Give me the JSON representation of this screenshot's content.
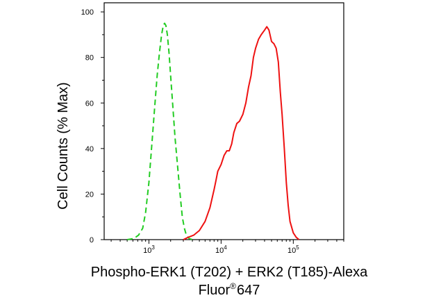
{
  "chart_data": {
    "type": "line",
    "ylabel": "Cell Counts (% Max)",
    "xlabel_line1": "Phospho-ERK1 (T202) + ERK2 (T185)-Alexa",
    "xlabel_line2_main": "Fluor",
    "xlabel_line2_sup": "®",
    "xlabel_line2_end": "647",
    "x_scale": "log",
    "xlim": [
      240,
      500000
    ],
    "ylim": [
      0,
      104
    ],
    "y_ticks": [
      0,
      20,
      40,
      60,
      80,
      100
    ],
    "y_tick_labels": [
      "0",
      "20",
      "40",
      "60",
      "80",
      "100"
    ],
    "x_major_ticks": [
      1000,
      10000,
      100000
    ],
    "x_major_tick_bases": [
      "10",
      "10",
      "10"
    ],
    "x_major_tick_exps": [
      "3",
      "4",
      "5"
    ],
    "grid": false,
    "colors": {
      "series_control": "#22cc22",
      "series_sample": "#ee1111",
      "axis": "#000000"
    },
    "series": [
      {
        "style": "dashed",
        "color": "#22cc22",
        "x": [
          500,
          620,
          720,
          820,
          900,
          1000,
          1100,
          1200,
          1300,
          1400,
          1500,
          1580,
          1650,
          1720,
          1800,
          1900,
          2000,
          2150,
          2300,
          2500,
          2700,
          2900,
          3100,
          3300,
          3600,
          4000
        ],
        "y": [
          0,
          0.5,
          2,
          5,
          12,
          25,
          42,
          58,
          72,
          82,
          90,
          94,
          95,
          94,
          90,
          82,
          72,
          58,
          45,
          32,
          20,
          10,
          5,
          2,
          0.5,
          0
        ]
      },
      {
        "style": "solid",
        "color": "#ee1111",
        "x": [
          3000,
          3500,
          4200,
          5000,
          6000,
          7000,
          8000,
          8500,
          9000,
          10000,
          11000,
          12000,
          13000,
          14000,
          15000,
          16500,
          18000,
          20000,
          22000,
          24000,
          26000,
          28000,
          30000,
          33000,
          36000,
          40000,
          43000,
          46000,
          50000,
          54000,
          58000,
          62000,
          66000,
          70000,
          75000,
          80000,
          85000,
          90000,
          100000,
          110000,
          120000
        ],
        "y": [
          0,
          1,
          2,
          4,
          8,
          14,
          22,
          26,
          30,
          33,
          37,
          39,
          39,
          42,
          47,
          51,
          52,
          55,
          60,
          67,
          72,
          80,
          84,
          88,
          90,
          92,
          93.5,
          92,
          87,
          86,
          84,
          78,
          65,
          55,
          40,
          25,
          15,
          8,
          3,
          1,
          0
        ]
      }
    ]
  }
}
